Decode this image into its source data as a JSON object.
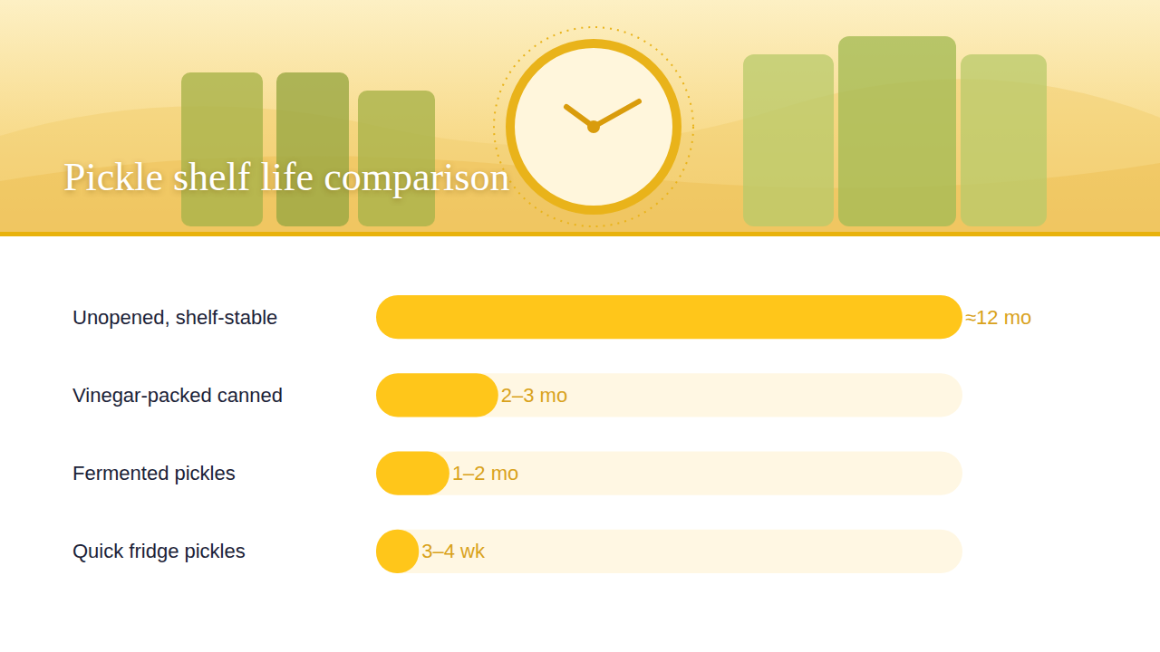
{
  "chart_data": {
    "type": "bar",
    "title": "Pickle shelf life comparison",
    "orientation": "horizontal",
    "categories": [
      "Unopened, shelf-stable",
      "Vinegar-packed canned",
      "Fermented pickles",
      "Quick fridge pickles"
    ],
    "values": [
      12,
      2.5,
      1.5,
      0.875
    ],
    "value_labels": [
      "≈12 mo",
      "2–3 mo",
      "1–2 mo",
      "3–4 wk"
    ],
    "data_labels": true,
    "color": "#ffc61a",
    "xlim": [
      0,
      12
    ],
    "xticks": [],
    "tick_labels": false,
    "grid": false
  }
}
